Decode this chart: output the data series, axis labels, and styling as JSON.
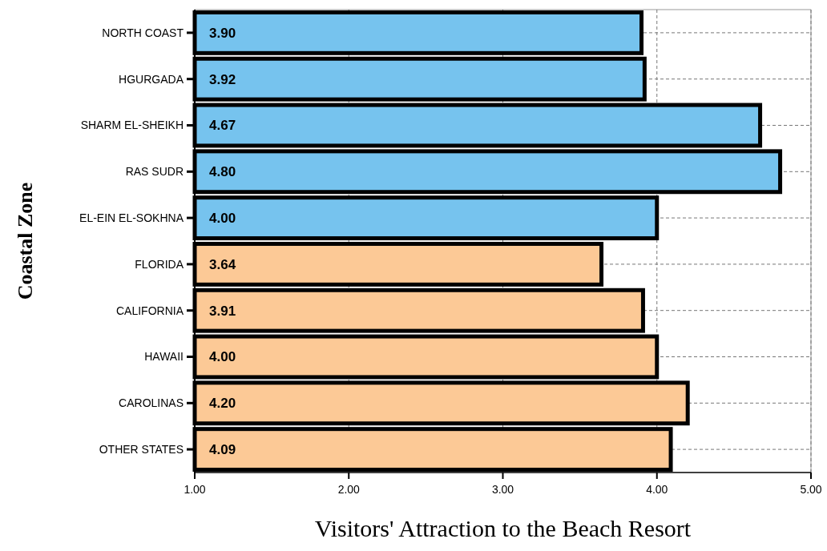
{
  "chart_data": {
    "type": "bar",
    "orientation": "horizontal",
    "xlabel": "Visitors' Attraction to the Beach Resort",
    "ylabel": "Coastal Zone",
    "categories": [
      "NORTH COAST",
      "HGURGADA",
      "SHARM EL-SHEIKH",
      "RAS SUDR",
      "EL-EIN EL-SOKHNA",
      "FLORIDA",
      "CALIFORNIA",
      "HAWAII",
      "CAROLINAS",
      "OTHER STATES"
    ],
    "values": [
      3.9,
      3.92,
      4.67,
      4.8,
      4.0,
      3.64,
      3.91,
      4.0,
      4.2,
      4.09
    ],
    "colors": [
      "#76c3ee",
      "#76c3ee",
      "#76c3ee",
      "#76c3ee",
      "#76c3ee",
      "#fcc996",
      "#fcc996",
      "#fcc996",
      "#fcc996",
      "#fcc996"
    ],
    "xlim": [
      1,
      5
    ],
    "xticks": [
      {
        "value": 1,
        "label": "1.00"
      },
      {
        "value": 2,
        "label": "2.00"
      },
      {
        "value": 3,
        "label": "3.00"
      },
      {
        "value": 4,
        "label": "4.00"
      },
      {
        "value": 5,
        "label": "5.00"
      }
    ],
    "value_labels": [
      "3.90",
      "3.92",
      "4.67",
      "4.80",
      "4.00",
      "3.64",
      "3.91",
      "4.00",
      "4.20",
      "4.09"
    ],
    "grid": true
  }
}
